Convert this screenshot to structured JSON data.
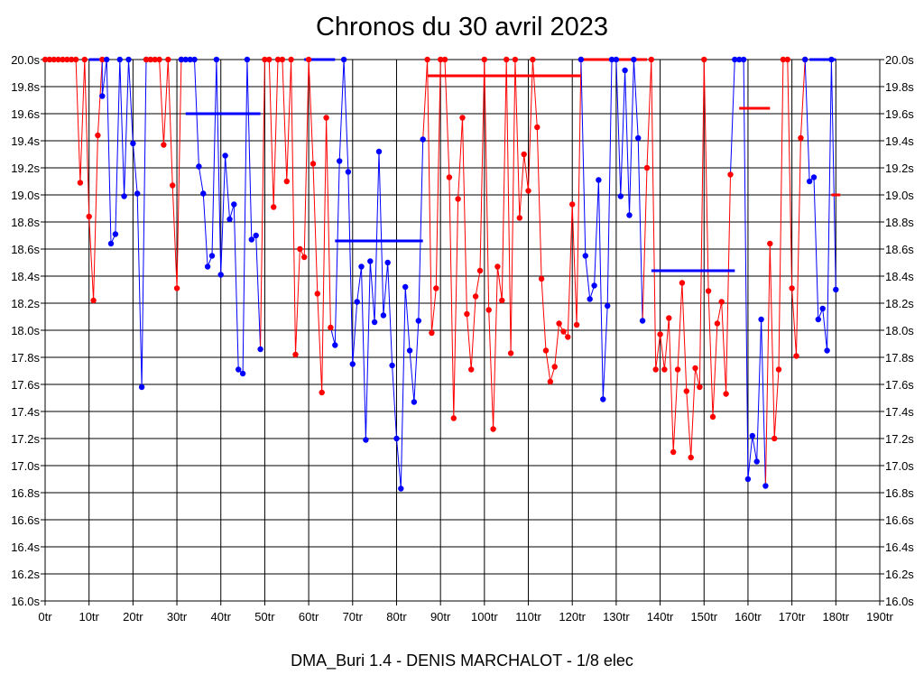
{
  "title": "Chronos du 30 avril 2023",
  "footer": "DMA_Buri 1.4 - DENIS MARCHALOT - 1/8 elec",
  "colors": {
    "red_series": "#ff0000",
    "blue_series": "#0000ff",
    "grid": "#000000",
    "background": "#ffffff"
  },
  "chart_data": {
    "type": "line",
    "title": "Chronos du 30 avril 2023",
    "xlabel": "",
    "ylabel": "",
    "xlim": [
      0,
      190
    ],
    "ylim": [
      16.0,
      20.0
    ],
    "grid": true,
    "x_ticks": [
      "0tr",
      "10tr",
      "20tr",
      "30tr",
      "40tr",
      "50tr",
      "60tr",
      "70tr",
      "80tr",
      "90tr",
      "100tr",
      "110tr",
      "120tr",
      "130tr",
      "140tr",
      "150tr",
      "160tr",
      "170tr",
      "180tr",
      "190tr"
    ],
    "y_ticks": [
      "16.0s",
      "16.2s",
      "16.4s",
      "16.6s",
      "16.8s",
      "17.0s",
      "17.2s",
      "17.4s",
      "17.6s",
      "17.8s",
      "18.0s",
      "18.2s",
      "18.4s",
      "18.6s",
      "18.8s",
      "19.0s",
      "19.2s",
      "19.4s",
      "19.6s",
      "19.8s",
      "20.0s"
    ],
    "series": [
      {
        "color": "#ff0000",
        "points": [
          [
            0,
            20
          ],
          [
            1,
            20
          ],
          [
            2,
            20
          ],
          [
            3,
            20
          ],
          [
            4,
            20
          ],
          [
            5,
            20
          ],
          [
            6,
            20
          ],
          [
            7,
            20
          ],
          [
            8,
            19.09
          ],
          [
            9,
            20
          ],
          [
            10,
            18.84
          ],
          [
            11,
            18.22
          ],
          [
            12,
            19.44
          ],
          [
            13,
            20
          ]
        ],
        "mean": null
      },
      {
        "color": "#0000ff",
        "points": [
          [
            13,
            19.73
          ],
          [
            14,
            20
          ],
          [
            15,
            18.64
          ],
          [
            16,
            18.71
          ],
          [
            17,
            20
          ],
          [
            18,
            18.99
          ],
          [
            19,
            20
          ],
          [
            20,
            19.38
          ],
          [
            21,
            19.01
          ],
          [
            22,
            17.58
          ],
          [
            23,
            20
          ]
        ],
        "mean": null
      },
      {
        "color": "#ff0000",
        "points": [
          [
            23,
            20
          ],
          [
            24,
            20
          ],
          [
            25,
            20
          ],
          [
            26,
            20
          ],
          [
            27,
            19.37
          ],
          [
            28,
            20
          ],
          [
            29,
            19.07
          ],
          [
            30,
            18.31
          ],
          [
            31,
            20
          ]
        ],
        "mean": null
      },
      {
        "color": "#0000ff",
        "points": [
          [
            31,
            20
          ],
          [
            32,
            20
          ],
          [
            33,
            20
          ],
          [
            34,
            20
          ],
          [
            35,
            19.21
          ],
          [
            36,
            19.01
          ],
          [
            37,
            18.47
          ],
          [
            38,
            18.55
          ],
          [
            39,
            20
          ],
          [
            40,
            18.41
          ],
          [
            41,
            19.29
          ],
          [
            42,
            18.82
          ],
          [
            43,
            18.93
          ],
          [
            44,
            17.71
          ],
          [
            45,
            17.68
          ],
          [
            46,
            20
          ],
          [
            47,
            18.67
          ],
          [
            48,
            18.7
          ],
          [
            49,
            17.86
          ]
        ],
        "mean": [
          [
            32,
            49
          ],
          19.6
        ]
      },
      {
        "color": "#ff0000",
        "points": [
          [
            50,
            20
          ],
          [
            51,
            20
          ],
          [
            52,
            18.91
          ],
          [
            53,
            20
          ],
          [
            54,
            20
          ],
          [
            55,
            19.1
          ],
          [
            56,
            20
          ],
          [
            57,
            17.82
          ],
          [
            58,
            18.6
          ],
          [
            59,
            18.54
          ],
          [
            60,
            20
          ],
          [
            61,
            19.23
          ],
          [
            62,
            18.27
          ],
          [
            63,
            17.54
          ],
          [
            64,
            19.57
          ],
          [
            65,
            18.02
          ]
        ],
        "mean": null
      },
      {
        "color": "#0000ff",
        "points": [
          [
            66,
            17.89
          ],
          [
            67,
            19.25
          ],
          [
            68,
            20
          ],
          [
            69,
            19.17
          ],
          [
            70,
            17.75
          ],
          [
            71,
            18.21
          ],
          [
            72,
            18.47
          ],
          [
            73,
            17.19
          ],
          [
            74,
            18.51
          ],
          [
            75,
            18.06
          ],
          [
            76,
            19.32
          ],
          [
            77,
            18.11
          ],
          [
            78,
            18.5
          ],
          [
            79,
            17.74
          ],
          [
            80,
            17.2
          ],
          [
            81,
            16.83
          ],
          [
            82,
            18.32
          ],
          [
            83,
            17.85
          ],
          [
            84,
            17.47
          ],
          [
            85,
            18.07
          ],
          [
            86,
            19.41
          ]
        ],
        "mean": [
          [
            66,
            86
          ],
          18.66
        ]
      },
      {
        "color": "#ff0000",
        "points": [
          [
            87,
            20
          ],
          [
            88,
            17.98
          ],
          [
            89,
            18.31
          ],
          [
            90,
            20
          ],
          [
            91,
            20
          ],
          [
            92,
            19.13
          ],
          [
            93,
            17.35
          ],
          [
            94,
            18.97
          ],
          [
            95,
            19.57
          ],
          [
            96,
            18.12
          ],
          [
            97,
            17.71
          ],
          [
            98,
            18.25
          ],
          [
            99,
            18.44
          ],
          [
            100,
            20
          ],
          [
            101,
            18.15
          ],
          [
            102,
            17.27
          ],
          [
            103,
            18.47
          ],
          [
            104,
            18.22
          ],
          [
            105,
            20
          ],
          [
            106,
            17.83
          ],
          [
            107,
            20
          ],
          [
            108,
            18.83
          ],
          [
            109,
            19.3
          ],
          [
            110,
            19.03
          ],
          [
            111,
            20
          ],
          [
            112,
            19.5
          ],
          [
            113,
            18.38
          ],
          [
            114,
            17.85
          ],
          [
            115,
            17.62
          ],
          [
            116,
            17.73
          ],
          [
            117,
            18.05
          ],
          [
            118,
            17.99
          ],
          [
            119,
            17.95
          ],
          [
            120,
            18.93
          ],
          [
            121,
            18.04
          ],
          [
            122,
            20
          ]
        ],
        "mean": [
          [
            87,
            122
          ],
          19.88
        ]
      },
      {
        "color": "#0000ff",
        "points": [
          [
            122,
            20
          ],
          [
            123,
            18.55
          ],
          [
            124,
            18.23
          ],
          [
            125,
            18.33
          ],
          [
            126,
            19.11
          ],
          [
            127,
            17.49
          ],
          [
            128,
            18.18
          ],
          [
            129,
            20
          ],
          [
            130,
            20
          ],
          [
            131,
            18.99
          ],
          [
            132,
            19.92
          ],
          [
            133,
            18.85
          ],
          [
            134,
            20
          ],
          [
            135,
            19.42
          ],
          [
            136,
            18.07
          ]
        ],
        "mean": null
      },
      {
        "color": "#ff0000",
        "points": [
          [
            137,
            19.2
          ],
          [
            138,
            20
          ],
          [
            139,
            17.71
          ],
          [
            140,
            17.97
          ],
          [
            141,
            17.71
          ],
          [
            142,
            18.09
          ],
          [
            143,
            17.1
          ],
          [
            144,
            17.71
          ],
          [
            145,
            18.35
          ],
          [
            146,
            17.55
          ],
          [
            147,
            17.06
          ],
          [
            148,
            17.72
          ],
          [
            149,
            17.58
          ],
          [
            150,
            20
          ],
          [
            151,
            18.29
          ],
          [
            152,
            17.36
          ],
          [
            153,
            18.05
          ],
          [
            154,
            18.21
          ],
          [
            155,
            17.53
          ],
          [
            156,
            19.15
          ]
        ],
        "mean": null
      },
      {
        "color": "#0000ff",
        "points": [
          [
            157,
            20
          ],
          [
            158,
            20
          ],
          [
            159,
            20
          ],
          [
            160,
            16.9
          ],
          [
            161,
            17.22
          ],
          [
            162,
            17.03
          ],
          [
            163,
            18.08
          ],
          [
            164,
            16.85
          ]
        ],
        "mean": [
          [
            138,
            157
          ],
          18.44
        ]
      },
      {
        "color": "#ff0000",
        "points": [
          [
            165,
            18.64
          ],
          [
            166,
            17.2
          ],
          [
            167,
            17.71
          ],
          [
            168,
            20
          ],
          [
            169,
            20
          ],
          [
            170,
            18.31
          ],
          [
            171,
            17.81
          ],
          [
            172,
            19.42
          ],
          [
            173,
            20
          ]
        ],
        "mean": [
          [
            158,
            165
          ],
          19.64
        ]
      },
      {
        "color": "#0000ff",
        "points": [
          [
            173,
            20
          ],
          [
            174,
            19.1
          ],
          [
            175,
            19.13
          ],
          [
            176,
            18.08
          ],
          [
            177,
            18.16
          ],
          [
            178,
            17.85
          ],
          [
            179,
            20
          ],
          [
            180,
            18.3
          ]
        ],
        "mean": null
      }
    ],
    "extra_means": [
      {
        "color": "#ff0000",
        "range": [
          179,
          181
        ],
        "value": 19.0
      },
      {
        "color": "#0000ff",
        "range": [
          174,
          180
        ],
        "value": 20.0
      },
      {
        "color": "#0000ff",
        "range": [
          10,
          13
        ],
        "value": 20.0
      },
      {
        "color": "#0000ff",
        "range": [
          59,
          66
        ],
        "value": 20.0
      },
      {
        "color": "#ff0000",
        "range": [
          122,
          137
        ],
        "value": 20.0
      }
    ]
  }
}
